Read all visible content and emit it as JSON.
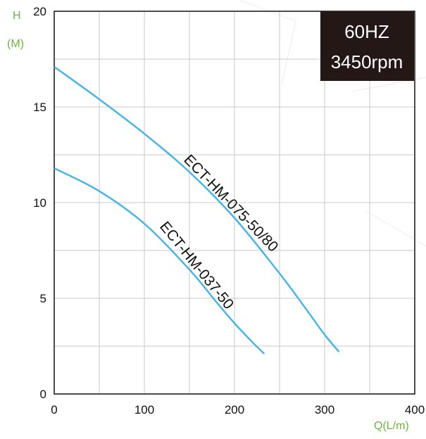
{
  "chart_data": {
    "type": "line",
    "title": "",
    "xlabel": "Q(L/m)",
    "ylabel_line1": "H",
    "ylabel_line2": "(M)",
    "xlim": [
      0,
      400
    ],
    "ylim": [
      0,
      20
    ],
    "x_ticks": [
      0,
      100,
      200,
      300,
      400
    ],
    "y_ticks": [
      0,
      5,
      10,
      15,
      20
    ],
    "grid": true,
    "badge_line1": "60HZ",
    "badge_line2": "3450rpm",
    "series": [
      {
        "name": "ECT-HM-075-50/80",
        "color": "#4bb4e6",
        "x": [
          0,
          50,
          100,
          150,
          200,
          250,
          280,
          300,
          316
        ],
        "y": [
          17.1,
          15.4,
          13.6,
          11.6,
          9.2,
          6.3,
          4.4,
          3.1,
          2.2
        ]
      },
      {
        "name": "ECT-HM-037-50",
        "color": "#4bb4e6",
        "x": [
          0,
          50,
          100,
          150,
          180,
          200,
          220,
          233
        ],
        "y": [
          11.8,
          10.6,
          8.9,
          6.5,
          4.8,
          3.7,
          2.7,
          2.1
        ]
      }
    ]
  }
}
